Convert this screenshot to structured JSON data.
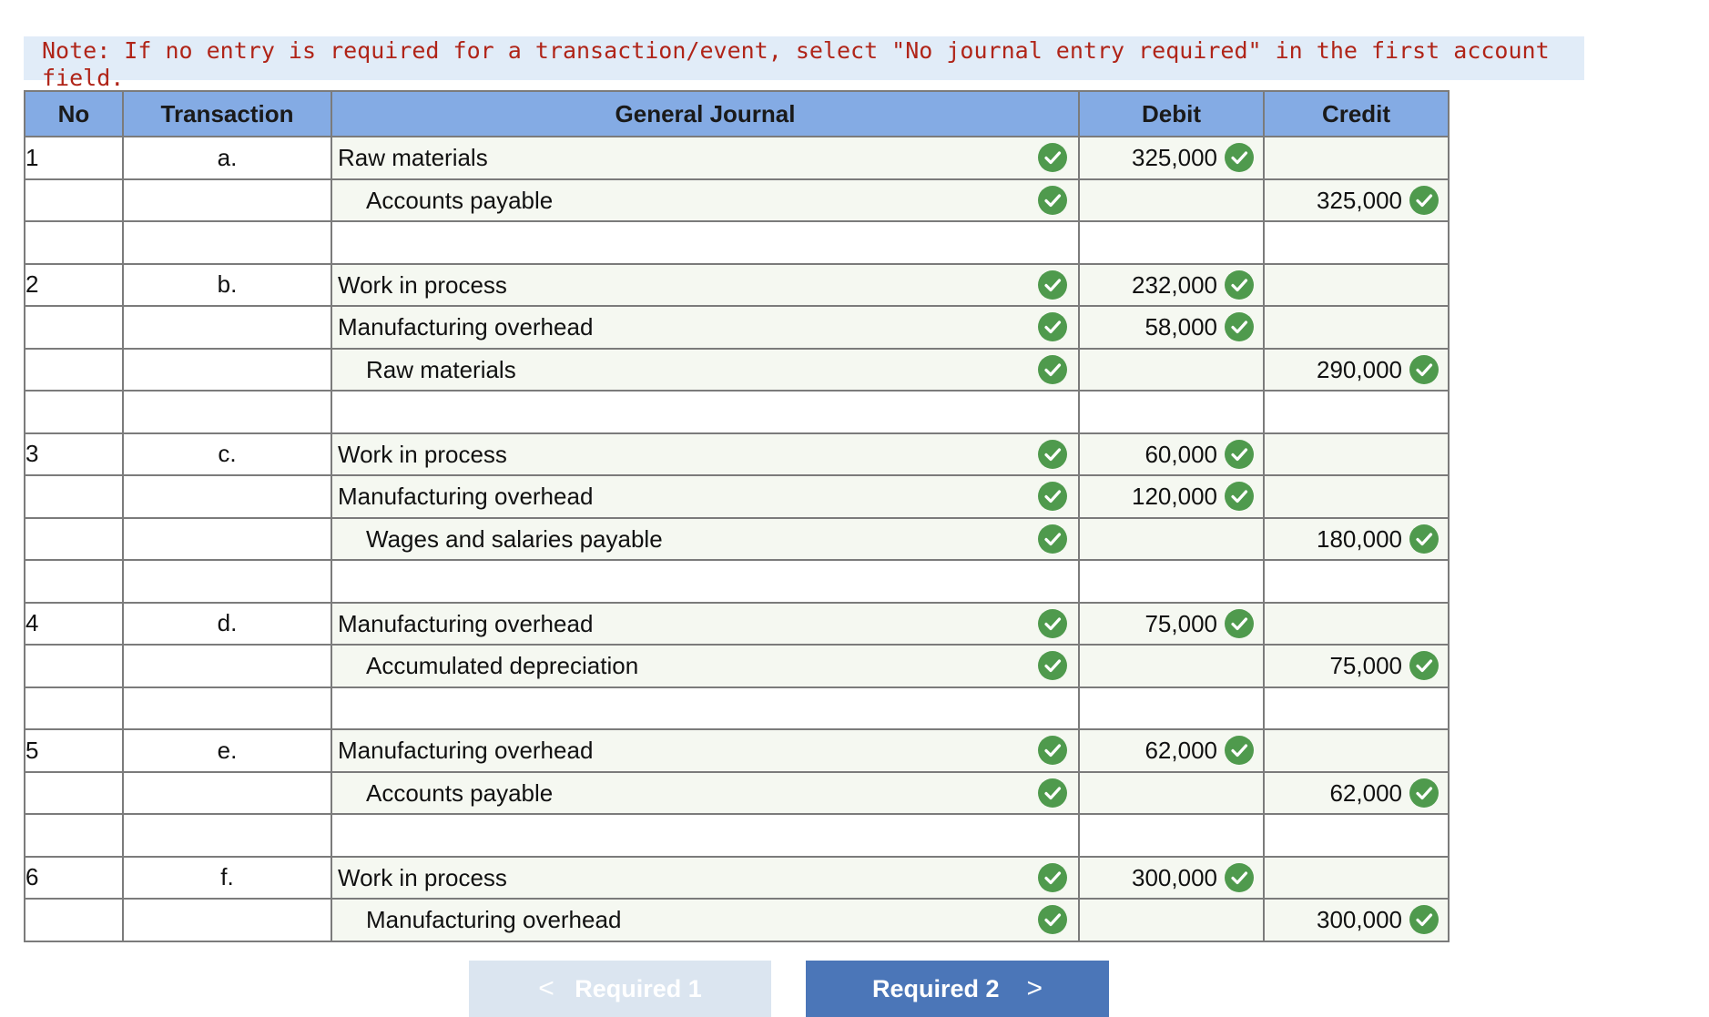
{
  "note": "Note: If no entry is required for a transaction/event, select \"No journal entry required\" in the first account field.",
  "headers": {
    "no": "No",
    "transaction": "Transaction",
    "general_journal": "General Journal",
    "debit": "Debit",
    "credit": "Credit"
  },
  "rows": [
    {
      "no": "1",
      "tx": "a.",
      "account": "Raw materials",
      "debit": "325,000",
      "credit": ""
    },
    {
      "no": "",
      "tx": "",
      "account": "Accounts payable",
      "debit": "",
      "credit": "325,000"
    },
    {
      "no": "",
      "tx": "",
      "account": "",
      "debit": "",
      "credit": ""
    },
    {
      "no": "2",
      "tx": "b.",
      "account": "Work in process",
      "debit": "232,000",
      "credit": ""
    },
    {
      "no": "",
      "tx": "",
      "account": "Manufacturing overhead",
      "debit": "58,000",
      "credit": ""
    },
    {
      "no": "",
      "tx": "",
      "account": "Raw materials",
      "debit": "",
      "credit": "290,000"
    },
    {
      "no": "",
      "tx": "",
      "account": "",
      "debit": "",
      "credit": ""
    },
    {
      "no": "3",
      "tx": "c.",
      "account": "Work in process",
      "debit": "60,000",
      "credit": ""
    },
    {
      "no": "",
      "tx": "",
      "account": "Manufacturing overhead",
      "debit": "120,000",
      "credit": ""
    },
    {
      "no": "",
      "tx": "",
      "account": "Wages and salaries payable",
      "debit": "",
      "credit": "180,000"
    },
    {
      "no": "",
      "tx": "",
      "account": "",
      "debit": "",
      "credit": ""
    },
    {
      "no": "4",
      "tx": "d.",
      "account": "Manufacturing overhead",
      "debit": "75,000",
      "credit": ""
    },
    {
      "no": "",
      "tx": "",
      "account": "Accumulated depreciation",
      "debit": "",
      "credit": "75,000"
    },
    {
      "no": "",
      "tx": "",
      "account": "",
      "debit": "",
      "credit": ""
    },
    {
      "no": "5",
      "tx": "e.",
      "account": "Manufacturing overhead",
      "debit": "62,000",
      "credit": ""
    },
    {
      "no": "",
      "tx": "",
      "account": "Accounts payable",
      "debit": "",
      "credit": "62,000"
    },
    {
      "no": "",
      "tx": "",
      "account": "",
      "debit": "",
      "credit": ""
    },
    {
      "no": "6",
      "tx": "f.",
      "account": "Work in process",
      "debit": "300,000",
      "credit": ""
    },
    {
      "no": "",
      "tx": "",
      "account": "Manufacturing overhead",
      "debit": "",
      "credit": "300,000"
    }
  ],
  "buttons": {
    "prev_label": "Required 1",
    "next_label": "Required 2",
    "prev_chevron": "<",
    "next_chevron": ">"
  },
  "colors": {
    "note_bg": "#e1ecf8",
    "note_text": "#b02418",
    "header_bg": "#84abe4",
    "check_green": "#4f9a4d",
    "next_button": "#4b76b8",
    "prev_button_disabled": "#dbe5f0"
  }
}
